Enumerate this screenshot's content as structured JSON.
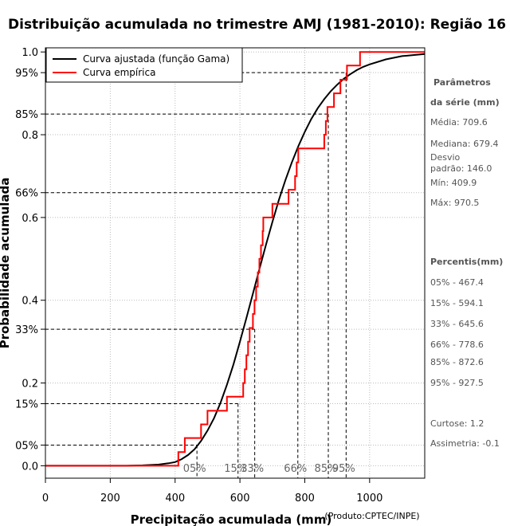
{
  "chart_data": {
    "type": "line",
    "title": "Distribuição acumulada no trimestre AMJ (1981-2010): Região 16",
    "xlabel": "Precipitação acumulada (mm)",
    "ylabel": "Probabilidade acumulada",
    "credit": "(Produto:CPTEC/INPE)",
    "xlim": [
      0,
      1170
    ],
    "ylim": [
      -0.03,
      1.01
    ],
    "xticks": [
      0,
      200,
      400,
      600,
      800,
      1000
    ],
    "yticks": [
      {
        "value": 0.0,
        "label": "0.0"
      },
      {
        "value": 0.05,
        "label": "05%"
      },
      {
        "value": 0.15,
        "label": "15%"
      },
      {
        "value": 0.2,
        "label": "0.2"
      },
      {
        "value": 0.33,
        "label": "33%"
      },
      {
        "value": 0.4,
        "label": "0.4"
      },
      {
        "value": 0.6,
        "label": "0.6"
      },
      {
        "value": 0.66,
        "label": "66%"
      },
      {
        "value": 0.8,
        "label": "0.8"
      },
      {
        "value": 0.85,
        "label": "85%"
      },
      {
        "value": 0.95,
        "label": "95%"
      },
      {
        "value": 1.0,
        "label": "1.0"
      }
    ],
    "grid": true,
    "legend": {
      "position": "top-left",
      "entries": [
        {
          "label": "Curva ajustada (função Gama)",
          "color": "#000000"
        },
        {
          "label": "Curva empírica",
          "color": "#ff0000"
        }
      ]
    },
    "series": [
      {
        "name": "Curva ajustada (função Gama)",
        "color": "#000000",
        "x": [
          0,
          250,
          300,
          350,
          380,
          400,
          420,
          440,
          460,
          480,
          500,
          520,
          540,
          560,
          580,
          600,
          620,
          640,
          660,
          680,
          700,
          720,
          740,
          760,
          780,
          800,
          820,
          840,
          860,
          880,
          900,
          920,
          940,
          960,
          980,
          1000,
          1050,
          1100,
          1170
        ],
        "values": [
          0.0,
          0.0,
          0.001,
          0.003,
          0.006,
          0.009,
          0.016,
          0.026,
          0.04,
          0.06,
          0.085,
          0.115,
          0.152,
          0.196,
          0.245,
          0.3,
          0.357,
          0.416,
          0.475,
          0.533,
          0.589,
          0.642,
          0.69,
          0.733,
          0.772,
          0.807,
          0.838,
          0.864,
          0.886,
          0.905,
          0.921,
          0.935,
          0.946,
          0.956,
          0.964,
          0.97,
          0.982,
          0.99,
          0.995
        ]
      },
      {
        "name": "Curva empírica",
        "color": "#ff0000",
        "step": true,
        "x": [
          0,
          409.9,
          430,
          480,
          500,
          520,
          550,
          560,
          610,
          615,
          620,
          625,
          630,
          640,
          645,
          650,
          655,
          660,
          665,
          670,
          672,
          675,
          680,
          690,
          700,
          730,
          750,
          760,
          770,
          775,
          780,
          790,
          860,
          865,
          870,
          890,
          910,
          930,
          970.5,
          1170
        ],
        "values": [
          0.0,
          0.033,
          0.067,
          0.1,
          0.133,
          0.133,
          0.133,
          0.167,
          0.2,
          0.233,
          0.267,
          0.3,
          0.333,
          0.367,
          0.4,
          0.433,
          0.467,
          0.5,
          0.533,
          0.567,
          0.6,
          0.6,
          0.6,
          0.6,
          0.633,
          0.633,
          0.667,
          0.667,
          0.7,
          0.733,
          0.767,
          0.767,
          0.8,
          0.833,
          0.867,
          0.9,
          0.933,
          0.967,
          1.0,
          1.0
        ]
      }
    ],
    "percentile_lines": [
      {
        "label": "05%",
        "x": 467.4,
        "p": 0.05
      },
      {
        "label": "15%",
        "x": 594.1,
        "p": 0.15
      },
      {
        "label": "33%",
        "x": 645.6,
        "p": 0.33
      },
      {
        "label": "66%",
        "x": 778.6,
        "p": 0.66
      },
      {
        "label": "85%",
        "x": 872.6,
        "p": 0.85
      },
      {
        "label": "95%",
        "x": 927.5,
        "p": 0.95
      }
    ]
  },
  "stats_panel": {
    "params_title_1": "Parâmetros",
    "params_title_2": "da série (mm)",
    "media": "Média: 709.6",
    "mediana": "Mediana: 679.4",
    "desvio_1": "Desvio",
    "desvio_2": "padrão: 146.0",
    "min": "Mín: 409.9",
    "max": "Máx: 970.5",
    "percentis_title": "Percentis(mm)",
    "p05": "05% - 467.4",
    "p15": "15% - 594.1",
    "p33": "33% - 645.6",
    "p66": "66% - 778.6",
    "p85": "85% - 872.6",
    "p95": "95% - 927.5",
    "curtose": "Curtose: 1.2",
    "assimetria": "Assimetria: -0.1"
  }
}
